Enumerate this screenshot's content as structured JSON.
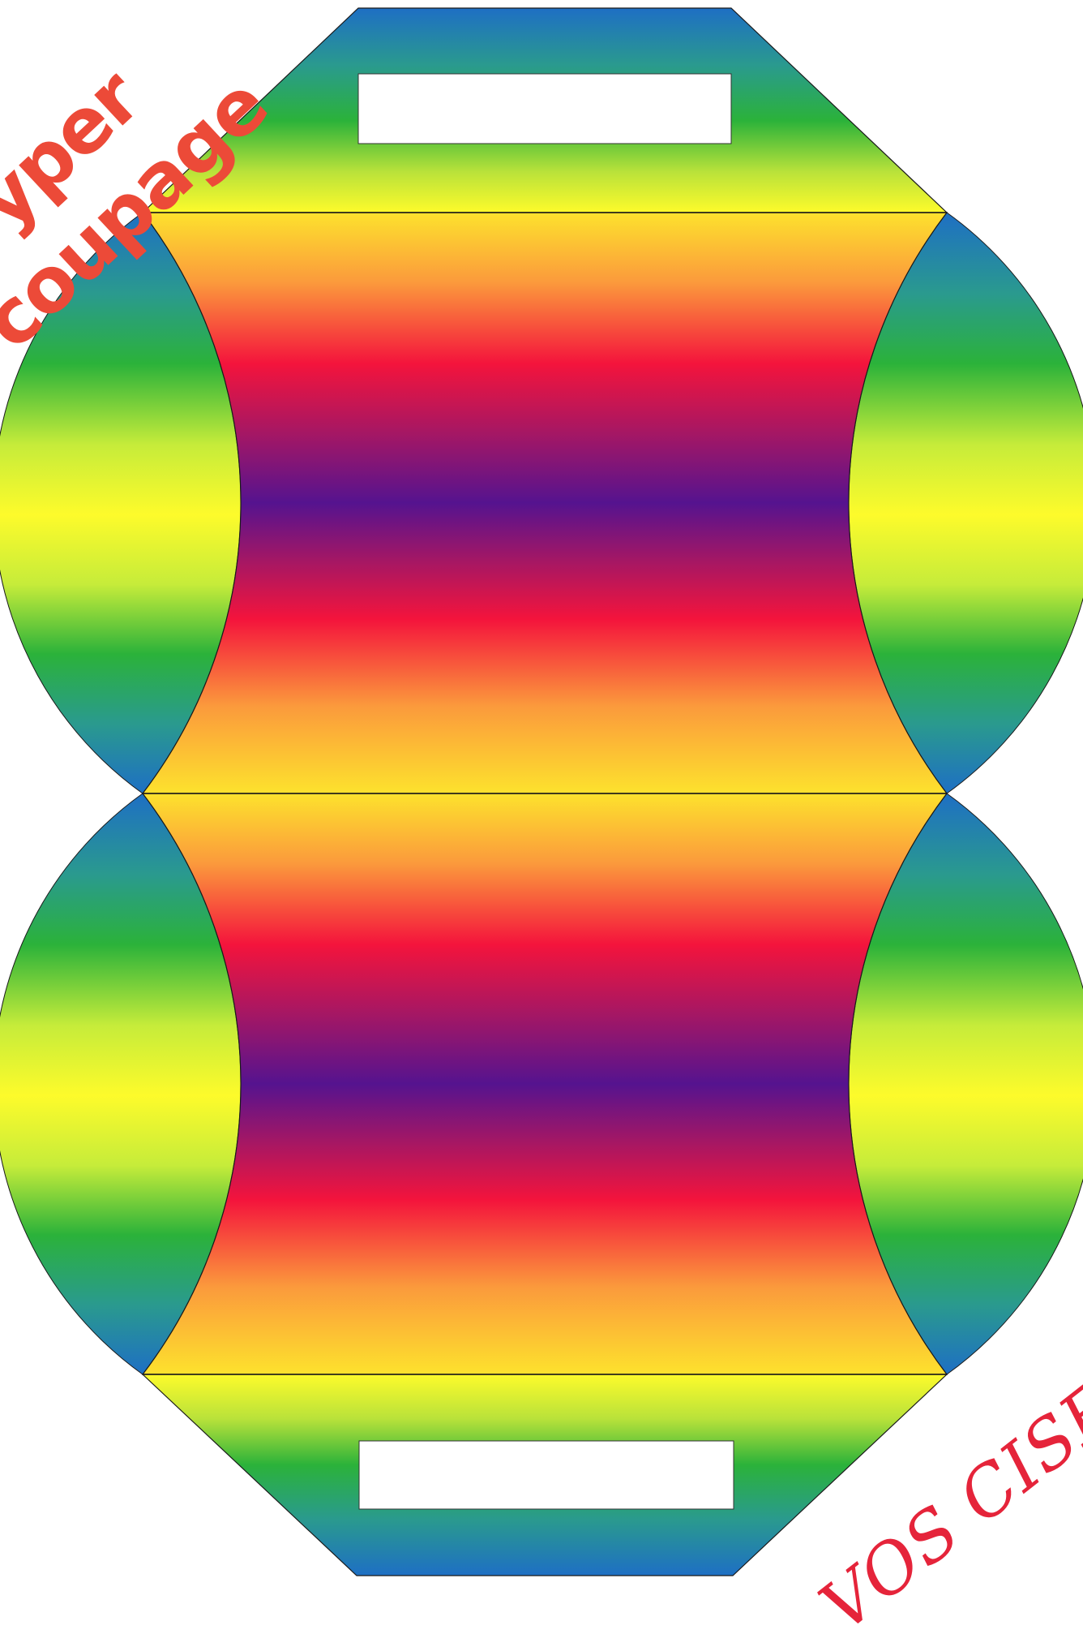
{
  "template": {
    "brand_line_1": "yper",
    "brand_line_2": "coupage",
    "slogan": "VOS CISEAU"
  },
  "colors": {
    "brand_text": "#ec4a38",
    "slogan_text": "#e5243a",
    "rainbow_blue": "#1e6fc4",
    "rainbow_green": "#2bb23a",
    "rainbow_yellow": "#fdfb2b",
    "rainbow_orange": "#fb9a3c",
    "rainbow_red": "#f4143c",
    "rainbow_violet": "#55138f",
    "cut_line": "#1a1a1a",
    "handle_hole": "#ffffff"
  }
}
